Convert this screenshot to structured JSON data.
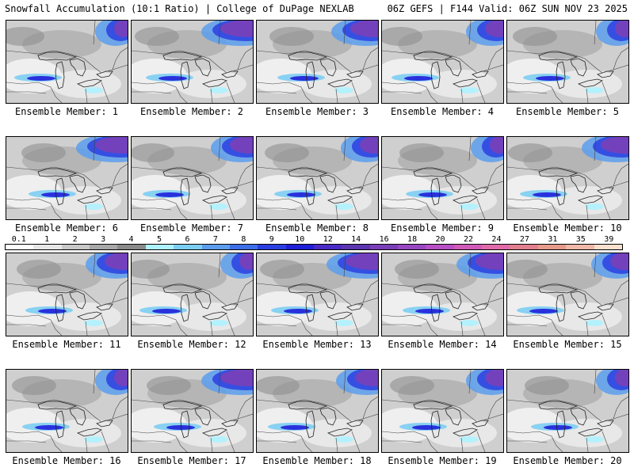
{
  "header": {
    "left": "Snowfall Accumulation (10:1 Ratio) | College of DuPage NEXLAB",
    "right": "06Z GEFS | F144 Valid: 06Z SUN NOV 23 2025"
  },
  "colorbar": {
    "labels": [
      "0.1",
      "1",
      "2",
      "3",
      "4",
      "5",
      "6",
      "7",
      "8",
      "9",
      "10",
      "12",
      "14",
      "16",
      "18",
      "20",
      "22",
      "24",
      "27",
      "31",
      "35",
      "39"
    ],
    "colors": [
      "#ffffff",
      "#e6e6e6",
      "#c8c8c8",
      "#a8a8a8",
      "#8a8a8a",
      "#aef2ff",
      "#7ccdf2",
      "#5c9ded",
      "#3d6fe6",
      "#2b3fe0",
      "#1f1fd9",
      "#4a2bc6",
      "#5c35b0",
      "#7a3fb8",
      "#9847c2",
      "#b84fc6",
      "#d15ab8",
      "#e06aa8",
      "#e0808f",
      "#e69a8a",
      "#f0b8a8",
      "#fbe0cf"
    ]
  },
  "members": [
    {
      "caption": "Ensemble Member: 1"
    },
    {
      "caption": "Ensemble Member: 2"
    },
    {
      "caption": "Ensemble Member: 3"
    },
    {
      "caption": "Ensemble Member: 4"
    },
    {
      "caption": "Ensemble Member: 5"
    },
    {
      "caption": "Ensemble Member: 6"
    },
    {
      "caption": "Ensemble Member: 7"
    },
    {
      "caption": "Ensemble Member: 8"
    },
    {
      "caption": "Ensemble Member: 9"
    },
    {
      "caption": "Ensemble Member: 10"
    },
    {
      "caption": "Ensemble Member: 11"
    },
    {
      "caption": "Ensemble Member: 12"
    },
    {
      "caption": "Ensemble Member: 13"
    },
    {
      "caption": "Ensemble Member: 14"
    },
    {
      "caption": "Ensemble Member: 15"
    },
    {
      "caption": "Ensemble Member: 16"
    },
    {
      "caption": "Ensemble Member: 17"
    },
    {
      "caption": "Ensemble Member: 18"
    },
    {
      "caption": "Ensemble Member: 19"
    },
    {
      "caption": "Ensemble Member: 20"
    }
  ]
}
